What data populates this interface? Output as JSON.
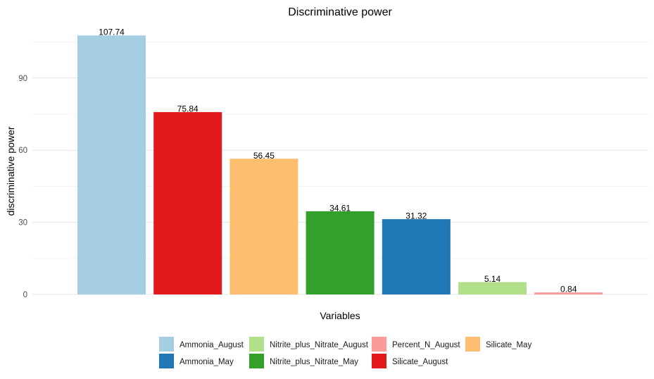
{
  "chart_data": {
    "type": "bar",
    "title": "Discriminative power",
    "xlabel": "Variables",
    "ylabel": "discriminative power",
    "ylim": [
      0,
      115
    ],
    "yticks": [
      0,
      30,
      60,
      90
    ],
    "grid": true,
    "legend_position": "bottom",
    "categories": [
      "Ammonia_August",
      "Silicate_August",
      "Silicate_May",
      "Nitrite_plus_Nitrate_May",
      "Ammonia_May",
      "Nitrite_plus_Nitrate_August",
      "Percent_N_August"
    ],
    "values": [
      107.74,
      75.84,
      56.45,
      34.61,
      31.32,
      5.14,
      0.84
    ],
    "value_labels": [
      "107.74",
      "75.84",
      "56.45",
      "34.61",
      "31.32",
      "5.14",
      "0.84"
    ],
    "colors": {
      "Ammonia_August": "#a6cee3",
      "Ammonia_May": "#1f78b4",
      "Nitrite_plus_Nitrate_August": "#b2df8a",
      "Nitrite_plus_Nitrate_May": "#33a02c",
      "Percent_N_August": "#fb9a99",
      "Silicate_August": "#e31a1c",
      "Silicate_May": "#fdbf6f"
    },
    "legend": [
      "Ammonia_August",
      "Ammonia_May",
      "Nitrite_plus_Nitrate_August",
      "Nitrite_plus_Nitrate_May",
      "Percent_N_August",
      "Silicate_August",
      "Silicate_May"
    ]
  }
}
